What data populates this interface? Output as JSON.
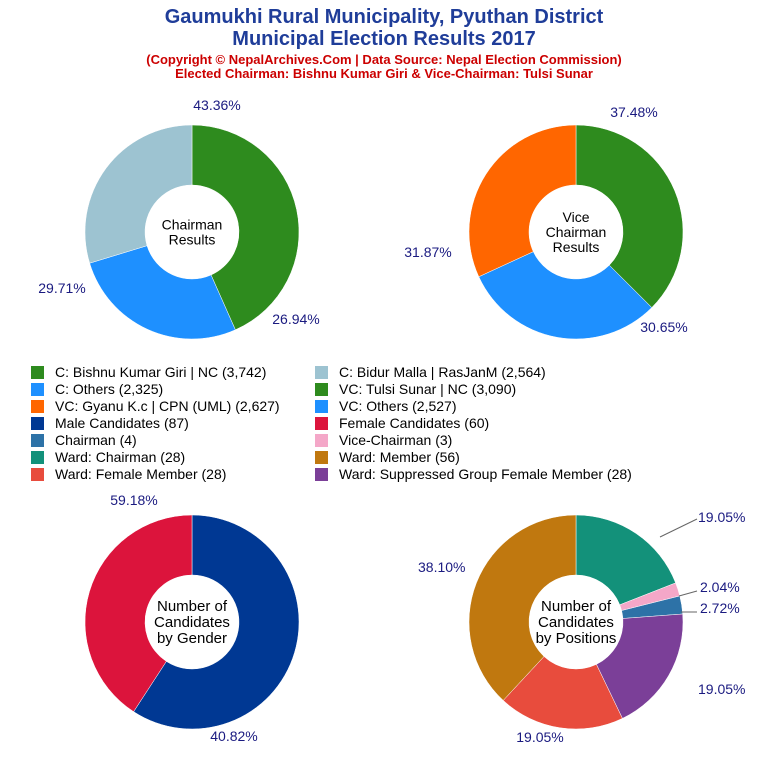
{
  "header": {
    "title_line1": "Gaumukhi Rural Municipality, Pyuthan District",
    "title_line2": "Municipal Election Results 2017",
    "subtitle_line1": "(Copyright © NepalArchives.Com | Data Source: Nepal Election Commission)",
    "subtitle_line2": "Elected Chairman: Bishnu Kumar Giri & Vice-Chairman: Tulsi Sunar"
  },
  "legend": [
    {
      "label": "C: Bishnu Kumar Giri | NC (3,742)",
      "color": "#2e8b1e"
    },
    {
      "label": "C: Bidur Malla | RasJanM (2,564)",
      "color": "#9dc3d1"
    },
    {
      "label": "C: Others (2,325)",
      "color": "#1e90ff"
    },
    {
      "label": "VC: Tulsi Sunar | NC (3,090)",
      "color": "#2e8b1e"
    },
    {
      "label": "VC: Gyanu K.c | CPN (UML) (2,627)",
      "color": "#ff6600"
    },
    {
      "label": "VC: Others (2,527)",
      "color": "#1e90ff"
    },
    {
      "label": "Male Candidates (87)",
      "color": "#003893"
    },
    {
      "label": "Female Candidates (60)",
      "color": "#dc143c"
    },
    {
      "label": "Chairman (4)",
      "color": "#2d72a7"
    },
    {
      "label": "Vice-Chairman (3)",
      "color": "#f4a7c8"
    },
    {
      "label": "Ward: Chairman (28)",
      "color": "#13917a"
    },
    {
      "label": "Ward: Member (56)",
      "color": "#c0780f"
    },
    {
      "label": "Ward: Female Member (28)",
      "color": "#e84c3d"
    },
    {
      "label": "Ward: Suppressed Group Female Member (28)",
      "color": "#7b3f98"
    }
  ],
  "chart_data": [
    {
      "type": "pie",
      "center_label": [
        "Chairman",
        "Results"
      ],
      "slices": [
        {
          "name": "C: Bishnu Kumar Giri | NC",
          "value": 3742,
          "pct_label": "43.36%",
          "color": "#2e8b1e"
        },
        {
          "name": "C: Others",
          "value": 2325,
          "pct_label": "26.94%",
          "color": "#1e90ff"
        },
        {
          "name": "C: Bidur Malla | RasJanM",
          "value": 2564,
          "pct_label": "29.71%",
          "color": "#9dc3d1"
        }
      ]
    },
    {
      "type": "pie",
      "center_label": [
        "Vice",
        "Chairman",
        "Results"
      ],
      "slices": [
        {
          "name": "VC: Tulsi Sunar | NC",
          "value": 3090,
          "pct_label": "37.48%",
          "color": "#2e8b1e"
        },
        {
          "name": "VC: Others",
          "value": 2527,
          "pct_label": "30.65%",
          "color": "#1e90ff"
        },
        {
          "name": "VC: Gyanu K.c | CPN (UML)",
          "value": 2627,
          "pct_label": "31.87%",
          "color": "#ff6600"
        }
      ]
    },
    {
      "type": "pie",
      "center_label": [
        "Number of",
        "Candidates",
        "by Gender"
      ],
      "slices": [
        {
          "name": "Male Candidates",
          "value": 87,
          "pct_label": "59.18%",
          "color": "#003893"
        },
        {
          "name": "Female Candidates",
          "value": 60,
          "pct_label": "40.82%",
          "color": "#dc143c"
        }
      ]
    },
    {
      "type": "pie",
      "center_label": [
        "Number of",
        "Candidates",
        "by Positions"
      ],
      "slices": [
        {
          "name": "Ward: Chairman",
          "value": 28,
          "pct_label": "19.05%",
          "color": "#13917a"
        },
        {
          "name": "Vice-Chairman",
          "value": 3,
          "pct_label": "2.04%",
          "color": "#f4a7c8"
        },
        {
          "name": "Chairman",
          "value": 4,
          "pct_label": "2.72%",
          "color": "#2d72a7"
        },
        {
          "name": "Ward: Suppressed Group Female Member",
          "value": 28,
          "pct_label": "19.05%",
          "color": "#7b3f98"
        },
        {
          "name": "Ward: Female Member",
          "value": 28,
          "pct_label": "19.05%",
          "color": "#e84c3d"
        },
        {
          "name": "Ward: Member",
          "value": 56,
          "pct_label": "38.10%",
          "color": "#c0780f"
        }
      ]
    }
  ]
}
